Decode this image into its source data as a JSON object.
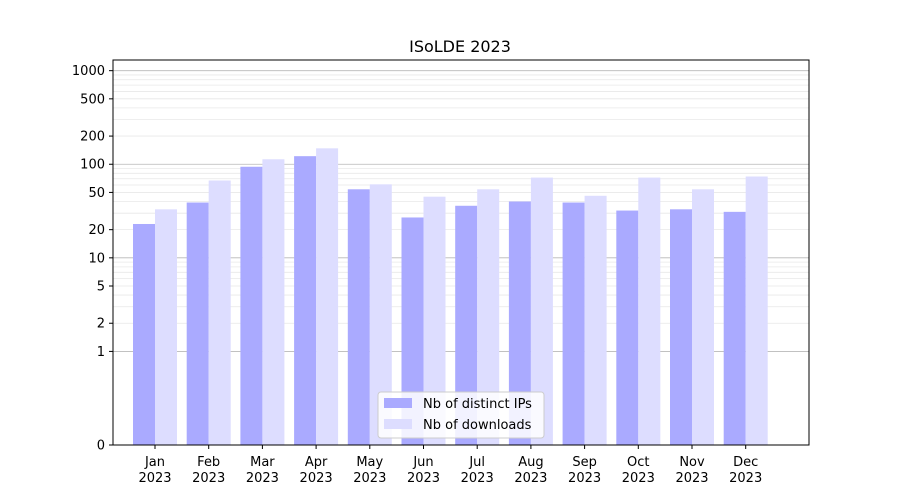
{
  "chart_data": {
    "type": "bar",
    "title": "ISoLDE 2023",
    "xlabel": "",
    "ylabel": "",
    "yscale": "symlog",
    "ylim": [
      0,
      1300
    ],
    "yticks": [
      0,
      1,
      2,
      5,
      10,
      20,
      50,
      100,
      200,
      500,
      1000
    ],
    "ytick_labels": [
      "0",
      "1",
      "2",
      "5",
      "10",
      "20",
      "50",
      "100",
      "200",
      "500",
      "1000"
    ],
    "grid": true,
    "legend_position": "lower center",
    "categories": [
      "Jan\n2023",
      "Feb\n2023",
      "Mar\n2023",
      "Apr\n2023",
      "May\n2023",
      "Jun\n2023",
      "Jul\n2023",
      "Aug\n2023",
      "Sep\n2023",
      "Oct\n2023",
      "Nov\n2023",
      "Dec\n2023"
    ],
    "series": [
      {
        "name": "Nb of distinct IPs",
        "color": "#aaaaff",
        "values": [
          23,
          39,
          94,
          122,
          54,
          27,
          36,
          40,
          39,
          32,
          33,
          31
        ]
      },
      {
        "name": "Nb of downloads",
        "color": "#ddddff",
        "values": [
          33,
          67,
          113,
          148,
          61,
          45,
          54,
          72,
          46,
          72,
          54,
          74
        ]
      }
    ]
  }
}
